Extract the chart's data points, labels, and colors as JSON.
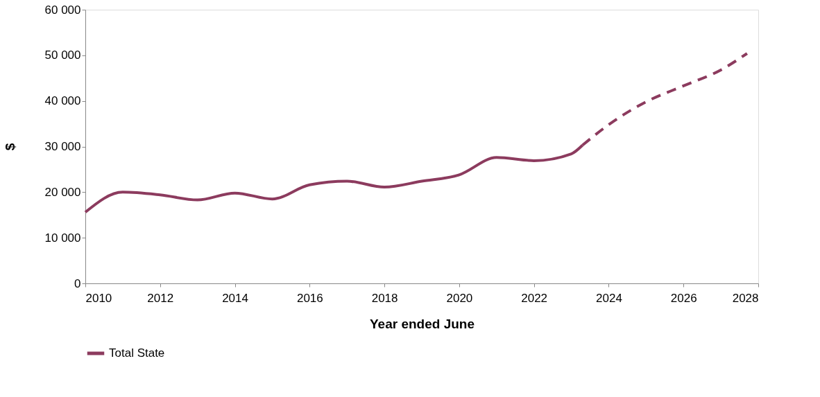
{
  "chart_data": {
    "type": "line",
    "xlabel": "Year ended June",
    "ylabel": "$",
    "series": [
      {
        "name": "Total State",
        "color": "#8c3b5e",
        "line_style": "solid",
        "x": [
          2010,
          2011,
          2012,
          2013,
          2014,
          2015,
          2016,
          2017,
          2018,
          2019,
          2020,
          2021,
          2022,
          2023,
          2023.3
        ],
        "values": [
          15600,
          20000,
          19400,
          18300,
          19800,
          18500,
          21600,
          22400,
          21100,
          22400,
          23800,
          27600,
          26900,
          28400,
          30300
        ]
      },
      {
        "color": "#8c3b5e",
        "line_style": "dashed",
        "x": [
          2023.3,
          2024,
          2025,
          2026,
          2027,
          2027.7
        ],
        "values": [
          30300,
          34800,
          39800,
          43300,
          46800,
          50400
        ]
      }
    ],
    "xlim": [
      2010,
      2028
    ],
    "xticks": [
      2010,
      2012,
      2014,
      2016,
      2018,
      2020,
      2022,
      2024,
      2026,
      2028
    ],
    "ylim": [
      0,
      60000
    ],
    "yticks": [
      {
        "value": 0,
        "label": "0"
      },
      {
        "value": 10000,
        "label": "10 000"
      },
      {
        "value": 20000,
        "label": "20 000"
      },
      {
        "value": 30000,
        "label": "30 000"
      },
      {
        "value": 40000,
        "label": "40 000"
      },
      {
        "value": 50000,
        "label": "50 000"
      },
      {
        "value": 60000,
        "label": "60 000"
      }
    ],
    "grid": false,
    "legend": "bottom",
    "marker": "none"
  }
}
